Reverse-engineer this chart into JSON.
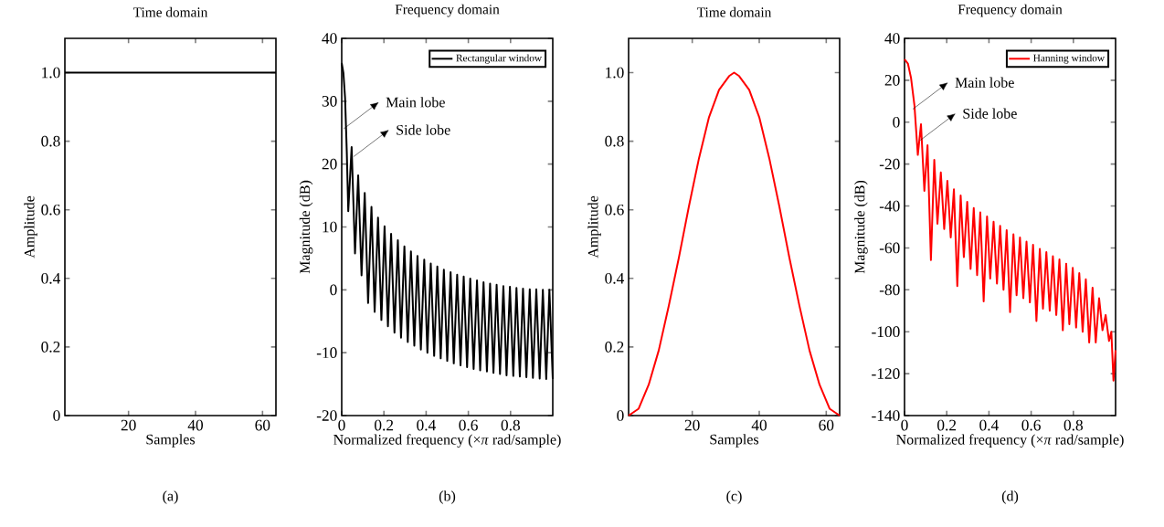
{
  "chart_data": [
    {
      "type": "line",
      "title": "Time domain",
      "xlabel": "Samples",
      "ylabel": "Amplitude",
      "xlim": [
        1,
        64
      ],
      "xticks": [
        20,
        40,
        60
      ],
      "ylim": [
        0,
        1.1
      ],
      "yticks": [
        0,
        0.2,
        0.4,
        0.6,
        0.8,
        {
          "value": 1,
          "label": "1.0"
        }
      ],
      "series": [
        {
          "color": "#000000",
          "x": [
            1,
            64
          ],
          "values": [
            1,
            1
          ]
        }
      ],
      "annotations": [
        "(a)"
      ]
    },
    {
      "type": "line",
      "title": "Frequency domain",
      "xlabel": "Normalized frequency (×*π* rad/sample)",
      "ylabel": "Magnitude (dB)",
      "xlim": [
        0,
        1
      ],
      "xticks": [
        0,
        0.2,
        0.4,
        0.6,
        0.8
      ],
      "ylim": [
        -20,
        40
      ],
      "yticks": [
        -20,
        -10,
        0,
        10,
        20,
        30,
        40
      ],
      "legend": "top right",
      "series": [
        {
          "name": "Rectangular window",
          "color": "#000000",
          "x": [
            0,
            0.008,
            0.016,
            0.024,
            0.031,
            0.047,
            0.063,
            0.078,
            0.094,
            0.109,
            0.125,
            0.141,
            0.156,
            0.172,
            0.188,
            0.203,
            0.219,
            0.234,
            0.25,
            0.266,
            0.281,
            0.297,
            0.313,
            0.328,
            0.344,
            0.359,
            0.375,
            0.391,
            0.406,
            0.422,
            0.438,
            0.453,
            0.469,
            0.484,
            0.5,
            0.516,
            0.531,
            0.547,
            0.563,
            0.578,
            0.594,
            0.609,
            0.625,
            0.641,
            0.656,
            0.672,
            0.688,
            0.703,
            0.719,
            0.734,
            0.75,
            0.766,
            0.781,
            0.797,
            0.813,
            0.828,
            0.844,
            0.859,
            0.875,
            0.891,
            0.906,
            0.922,
            0.938,
            0.953,
            0.969,
            0.984,
            1
          ],
          "values": [
            36.1,
            34.5,
            30.5,
            22,
            12.5,
            22.7,
            5.8,
            18.2,
            2.3,
            15.4,
            -2.1,
            13.2,
            -3.5,
            11.5,
            -4.8,
            10.1,
            -5.8,
            8.9,
            -6.8,
            7.9,
            -7.6,
            6.9,
            -8.3,
            6.1,
            -8.9,
            5.4,
            -9.5,
            4.8,
            -10.0,
            4.2,
            -10.5,
            3.7,
            -10.9,
            3.2,
            -11.3,
            2.8,
            -11.7,
            2.4,
            -12.0,
            2.1,
            -12.3,
            1.8,
            -12.6,
            1.5,
            -12.8,
            1.2,
            -13.0,
            1.0,
            -13.2,
            0.8,
            -13.4,
            0.6,
            -13.6,
            0.5,
            -13.7,
            0.3,
            -13.8,
            0.2,
            -13.9,
            0.1,
            -14.0,
            0.1,
            -14.1,
            0,
            -14.2,
            0,
            -14.2
          ]
        }
      ],
      "annotations": [
        {
          "text": "Main lobe",
          "x": 0.009,
          "y": 25.6
        },
        {
          "text": "Side lobe",
          "x": 0.057,
          "y": 21.2
        },
        "(b)"
      ]
    },
    {
      "type": "line",
      "title": "Time domain",
      "xlabel": "Samples",
      "ylabel": "Amplitude",
      "xlim": [
        1,
        64
      ],
      "xticks": [
        20,
        40,
        60
      ],
      "ylim": [
        0,
        1.1
      ],
      "yticks": [
        0,
        0.2,
        0.4,
        0.6,
        0.8,
        {
          "value": 1,
          "label": "1.0"
        }
      ],
      "series": [
        {
          "color": "#ff0000",
          "x": [
            1,
            4,
            7,
            10,
            13,
            16,
            19,
            22,
            25,
            28,
            31,
            32.5,
            34,
            37,
            40,
            43,
            46,
            49,
            52,
            55,
            58,
            61,
            64
          ],
          "values": [
            0,
            0.02,
            0.09,
            0.19,
            0.32,
            0.46,
            0.61,
            0.75,
            0.87,
            0.95,
            0.99,
            1.0,
            0.99,
            0.95,
            0.87,
            0.75,
            0.61,
            0.46,
            0.32,
            0.19,
            0.09,
            0.02,
            0
          ]
        }
      ],
      "annotations": [
        "(c)"
      ]
    },
    {
      "type": "line",
      "title": "Frequency domain",
      "xlabel": "Normalized frequency (×*π* rad/sample)",
      "ylabel": "Magnitude (dB)",
      "xlim": [
        0,
        1
      ],
      "xticks": [
        0,
        0.2,
        0.4,
        0.6,
        0.8
      ],
      "ylim": [
        -140,
        40
      ],
      "yticks": [
        -140,
        -120,
        -100,
        -80,
        -60,
        -40,
        -20,
        0,
        20,
        40
      ],
      "legend": "top right",
      "series": [
        {
          "name": "Hanning window",
          "color": "#ff0000",
          "x": [
            0,
            0.016,
            0.031,
            0.047,
            0.063,
            0.078,
            0.094,
            0.109,
            0.125,
            0.141,
            0.156,
            0.172,
            0.188,
            0.203,
            0.219,
            0.234,
            0.25,
            0.266,
            0.281,
            0.297,
            0.313,
            0.328,
            0.344,
            0.359,
            0.375,
            0.391,
            0.406,
            0.422,
            0.438,
            0.453,
            0.469,
            0.484,
            0.5,
            0.516,
            0.531,
            0.547,
            0.563,
            0.578,
            0.594,
            0.609,
            0.625,
            0.641,
            0.656,
            0.672,
            0.688,
            0.703,
            0.719,
            0.734,
            0.75,
            0.766,
            0.781,
            0.797,
            0.813,
            0.828,
            0.844,
            0.859,
            0.875,
            0.891,
            0.906,
            0.922,
            0.938,
            0.953,
            0.969,
            0.98,
            0.99,
            1
          ],
          "values": [
            30,
            28,
            21,
            8,
            -15.6,
            -1,
            -32.8,
            -11,
            -65.8,
            -18,
            -48.5,
            -24,
            -51,
            -28,
            -55,
            -32,
            -78.2,
            -35,
            -64.4,
            -38,
            -70,
            -41,
            -73,
            -43,
            -85.5,
            -45,
            -74.6,
            -47.5,
            -77,
            -49.5,
            -80,
            -51.5,
            -90.6,
            -53.5,
            -82.6,
            -55,
            -84,
            -57,
            -86,
            -58.5,
            -94.9,
            -60.5,
            -89,
            -62,
            -90,
            -64,
            -92,
            -65.5,
            -99.3,
            -67.5,
            -96.4,
            -69.5,
            -98,
            -72,
            -100,
            -75,
            -105.1,
            -79,
            -105.1,
            -84,
            -99.3,
            -92,
            -104.4,
            -100,
            -123.3,
            -108.8
          ]
        }
      ],
      "annotations": [
        {
          "text": "Main lobe",
          "x": 0.039,
          "y": 6.2
        },
        {
          "text": "Side lobe",
          "x": 0.075,
          "y": -8.6
        },
        "(d)"
      ]
    }
  ]
}
